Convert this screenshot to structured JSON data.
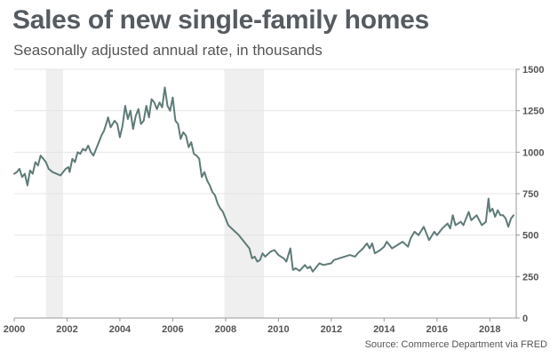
{
  "header": {
    "title": "Sales of new single-family homes",
    "subtitle": "Seasonally adjusted annual rate, in thousands"
  },
  "footer": {
    "source": "Source: Commerce Department via FRED"
  },
  "colors": {
    "line": "#5e7b78",
    "recession": "#efefef",
    "grid": "#e4e4e4",
    "axis": "#999999"
  },
  "chart_data": {
    "type": "line",
    "title": "Sales of new single-family homes",
    "subtitle": "Seasonally adjusted annual rate, in thousands",
    "xlabel": "",
    "ylabel": "",
    "xlim": [
      2000,
      2019
    ],
    "ylim": [
      0,
      1500
    ],
    "x_ticks": [
      {
        "value": 2000,
        "label": "2000"
      },
      {
        "value": 2002,
        "label": "2002"
      },
      {
        "value": 2004,
        "label": "2004"
      },
      {
        "value": 2006,
        "label": "2006"
      },
      {
        "value": 2008,
        "label": "2008"
      },
      {
        "value": 2010,
        "label": "2010"
      },
      {
        "value": 2012,
        "label": "2012"
      },
      {
        "value": 2014,
        "label": "2014"
      },
      {
        "value": 2016,
        "label": "2016"
      },
      {
        "value": 2018,
        "label": "2018"
      }
    ],
    "y_ticks": [
      {
        "value": 0,
        "label": "0"
      },
      {
        "value": 250,
        "label": "250"
      },
      {
        "value": 500,
        "label": "500"
      },
      {
        "value": 750,
        "label": "750"
      },
      {
        "value": 1000,
        "label": "1000"
      },
      {
        "value": 1250,
        "label": "1250"
      },
      {
        "value": 1500,
        "label": "1500"
      }
    ],
    "y_axis_side": "right",
    "grid": "horizontal",
    "legend": "none",
    "recessions": [
      {
        "start": 2001.2,
        "end": 2001.85
      },
      {
        "start": 2007.95,
        "end": 2009.45
      }
    ],
    "series": [
      {
        "points": [
          [
            2000.0,
            870
          ],
          [
            2000.1,
            880
          ],
          [
            2000.2,
            900
          ],
          [
            2000.3,
            850
          ],
          [
            2000.4,
            870
          ],
          [
            2000.5,
            800
          ],
          [
            2000.6,
            890
          ],
          [
            2000.7,
            870
          ],
          [
            2000.8,
            940
          ],
          [
            2000.9,
            920
          ],
          [
            2001.0,
            980
          ],
          [
            2001.1,
            960
          ],
          [
            2001.2,
            940
          ],
          [
            2001.3,
            900
          ],
          [
            2001.45,
            880
          ],
          [
            2001.6,
            870
          ],
          [
            2001.75,
            860
          ],
          [
            2001.85,
            880
          ],
          [
            2001.95,
            900
          ],
          [
            2002.05,
            910
          ],
          [
            2002.1,
            880
          ],
          [
            2002.2,
            960
          ],
          [
            2002.3,
            940
          ],
          [
            2002.4,
            1000
          ],
          [
            2002.5,
            990
          ],
          [
            2002.6,
            1020
          ],
          [
            2002.7,
            1010
          ],
          [
            2002.8,
            1040
          ],
          [
            2002.9,
            1000
          ],
          [
            2003.0,
            980
          ],
          [
            2003.1,
            1020
          ],
          [
            2003.2,
            1060
          ],
          [
            2003.3,
            1100
          ],
          [
            2003.4,
            1130
          ],
          [
            2003.5,
            1180
          ],
          [
            2003.55,
            1210
          ],
          [
            2003.65,
            1150
          ],
          [
            2003.8,
            1190
          ],
          [
            2003.9,
            1170
          ],
          [
            2004.0,
            1090
          ],
          [
            2004.1,
            1160
          ],
          [
            2004.2,
            1280
          ],
          [
            2004.3,
            1200
          ],
          [
            2004.4,
            1250
          ],
          [
            2004.5,
            1140
          ],
          [
            2004.6,
            1220
          ],
          [
            2004.7,
            1260
          ],
          [
            2004.8,
            1170
          ],
          [
            2004.9,
            1190
          ],
          [
            2005.0,
            1280
          ],
          [
            2005.1,
            1210
          ],
          [
            2005.2,
            1320
          ],
          [
            2005.3,
            1300
          ],
          [
            2005.4,
            1260
          ],
          [
            2005.5,
            1300
          ],
          [
            2005.6,
            1270
          ],
          [
            2005.7,
            1390
          ],
          [
            2005.8,
            1280
          ],
          [
            2005.9,
            1250
          ],
          [
            2006.0,
            1330
          ],
          [
            2006.1,
            1190
          ],
          [
            2006.2,
            1170
          ],
          [
            2006.3,
            1080
          ],
          [
            2006.4,
            1120
          ],
          [
            2006.5,
            1100
          ],
          [
            2006.6,
            1030
          ],
          [
            2006.7,
            1060
          ],
          [
            2006.8,
            990
          ],
          [
            2006.9,
            980
          ],
          [
            2007.0,
            960
          ],
          [
            2007.1,
            850
          ],
          [
            2007.2,
            880
          ],
          [
            2007.3,
            830
          ],
          [
            2007.4,
            800
          ],
          [
            2007.5,
            760
          ],
          [
            2007.6,
            740
          ],
          [
            2007.7,
            690
          ],
          [
            2007.8,
            660
          ],
          [
            2007.9,
            640
          ],
          [
            2008.0,
            600
          ],
          [
            2008.1,
            560
          ],
          [
            2008.3,
            530
          ],
          [
            2008.5,
            500
          ],
          [
            2008.7,
            460
          ],
          [
            2008.9,
            420
          ],
          [
            2009.0,
            360
          ],
          [
            2009.1,
            370
          ],
          [
            2009.2,
            340
          ],
          [
            2009.3,
            350
          ],
          [
            2009.4,
            390
          ],
          [
            2009.5,
            370
          ],
          [
            2009.7,
            400
          ],
          [
            2009.85,
            410
          ],
          [
            2010.0,
            380
          ],
          [
            2010.2,
            360
          ],
          [
            2010.3,
            340
          ],
          [
            2010.45,
            420
          ],
          [
            2010.55,
            290
          ],
          [
            2010.65,
            300
          ],
          [
            2010.8,
            285
          ],
          [
            2011.0,
            320
          ],
          [
            2011.1,
            300
          ],
          [
            2011.2,
            310
          ],
          [
            2011.3,
            280
          ],
          [
            2011.4,
            300
          ],
          [
            2011.55,
            330
          ],
          [
            2011.7,
            320
          ],
          [
            2012.0,
            330
          ],
          [
            2012.1,
            350
          ],
          [
            2012.3,
            360
          ],
          [
            2012.5,
            370
          ],
          [
            2012.7,
            380
          ],
          [
            2012.9,
            370
          ],
          [
            2013.0,
            390
          ],
          [
            2013.2,
            420
          ],
          [
            2013.35,
            450
          ],
          [
            2013.45,
            420
          ],
          [
            2013.55,
            450
          ],
          [
            2013.65,
            390
          ],
          [
            2013.85,
            410
          ],
          [
            2014.0,
            430
          ],
          [
            2014.1,
            460
          ],
          [
            2014.3,
            420
          ],
          [
            2014.5,
            440
          ],
          [
            2014.7,
            460
          ],
          [
            2014.9,
            430
          ],
          [
            2015.0,
            480
          ],
          [
            2015.15,
            520
          ],
          [
            2015.3,
            500
          ],
          [
            2015.5,
            550
          ],
          [
            2015.7,
            470
          ],
          [
            2015.9,
            520
          ],
          [
            2016.0,
            500
          ],
          [
            2016.2,
            540
          ],
          [
            2016.4,
            570
          ],
          [
            2016.5,
            540
          ],
          [
            2016.6,
            620
          ],
          [
            2016.7,
            560
          ],
          [
            2016.9,
            580
          ],
          [
            2017.0,
            560
          ],
          [
            2017.2,
            640
          ],
          [
            2017.3,
            590
          ],
          [
            2017.5,
            620
          ],
          [
            2017.7,
            560
          ],
          [
            2017.85,
            580
          ],
          [
            2017.95,
            720
          ],
          [
            2018.0,
            640
          ],
          [
            2018.1,
            660
          ],
          [
            2018.2,
            610
          ],
          [
            2018.3,
            650
          ],
          [
            2018.4,
            620
          ],
          [
            2018.5,
            620
          ],
          [
            2018.6,
            600
          ],
          [
            2018.7,
            550
          ],
          [
            2018.8,
            600
          ],
          [
            2018.9,
            620
          ]
        ]
      }
    ]
  }
}
